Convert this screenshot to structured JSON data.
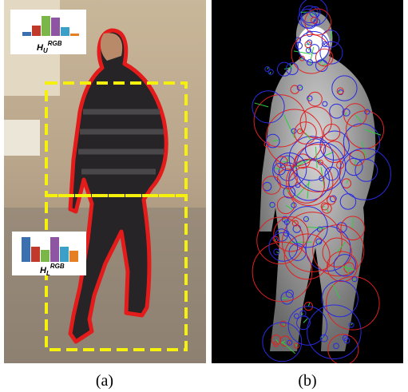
{
  "panels": [
    {
      "caption": "(a)",
      "histograms": [
        {
          "symbol": "H",
          "subscript": "U",
          "superscript": "RGB"
        },
        {
          "symbol": "H",
          "subscript": "L",
          "superscript": "RGB"
        }
      ]
    },
    {
      "caption": "(b)"
    }
  ]
}
